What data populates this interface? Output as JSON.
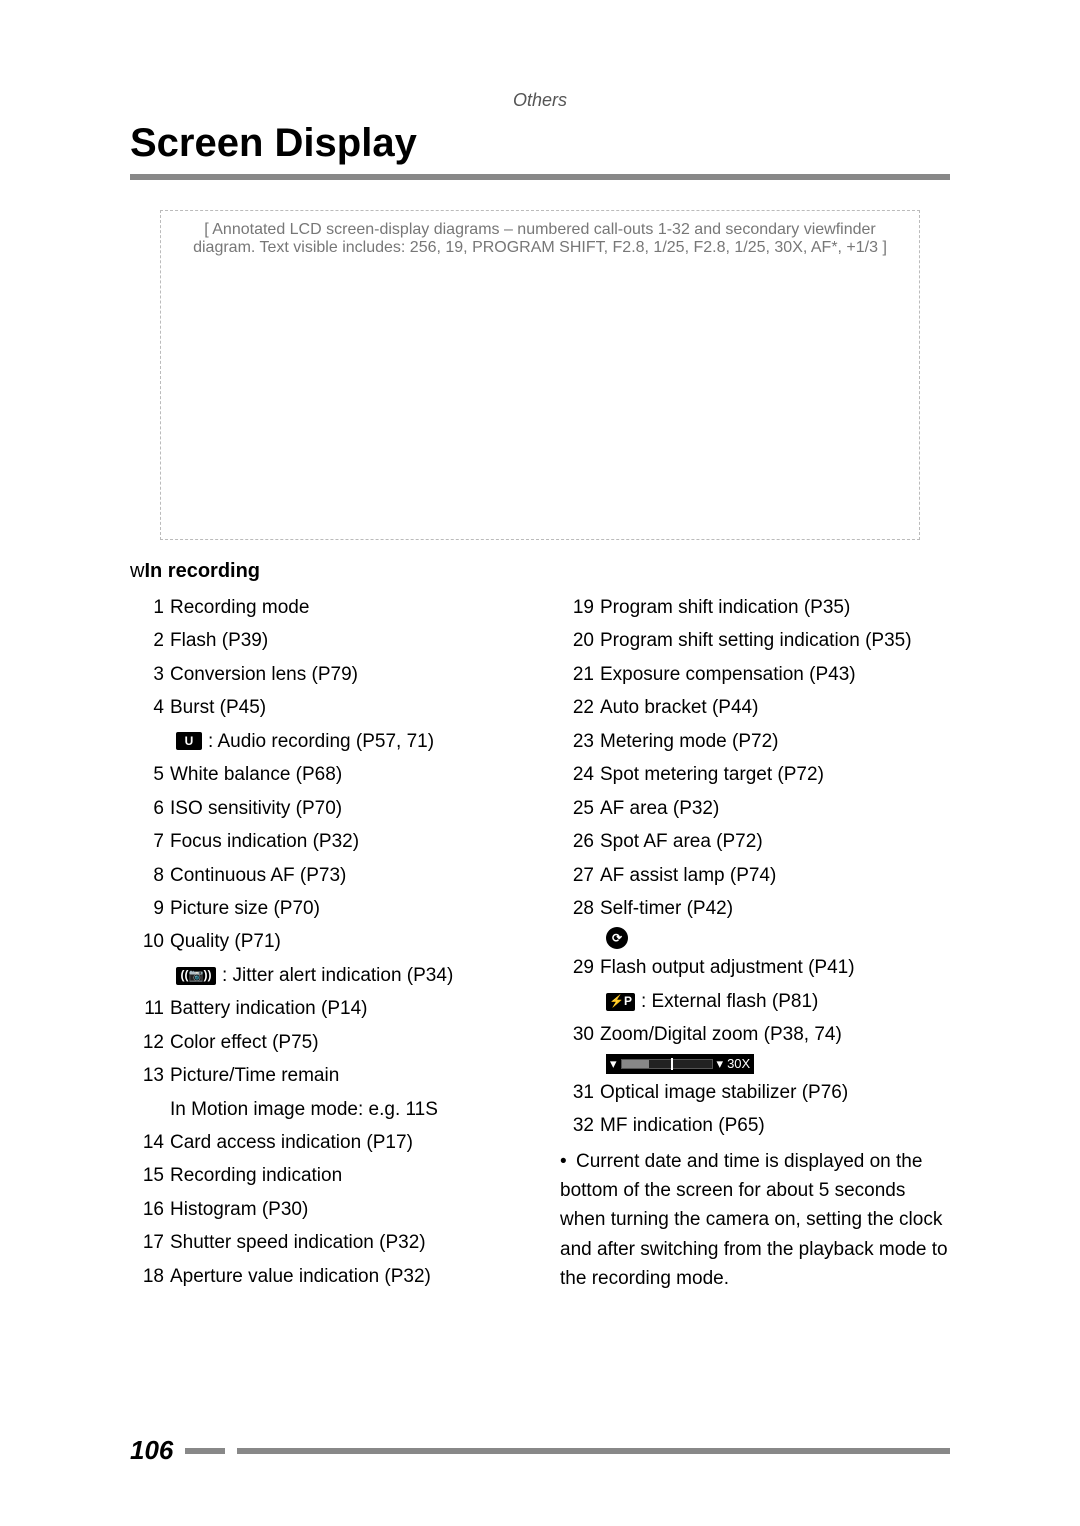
{
  "breadcrumb": "Others",
  "title": "Screen Display",
  "diagram_placeholder": "[ Annotated LCD screen-display diagrams – numbered call-outs 1-32 and secondary viewfinder diagram. Text visible includes: 256, 19, PROGRAM SHIFT, F2.8, 1/25, F2.8, 1/25, 30X, AF*, +1/3 ]",
  "section_heading_prefix": "w",
  "section_heading": "In recording",
  "left_items": [
    {
      "n": "1",
      "t": "Recording mode"
    },
    {
      "n": "2",
      "t": "Flash (P39)"
    },
    {
      "n": "3",
      "t": "Conversion lens (P79)"
    },
    {
      "n": "4",
      "t": "Burst (P45)"
    },
    {
      "n": "",
      "t": "",
      "sub": true,
      "icon": "audio",
      "sub_t": ": Audio recording (P57, 71)"
    },
    {
      "n": "5",
      "t": "White balance (P68)"
    },
    {
      "n": "6",
      "t": "ISO sensitivity (P70)"
    },
    {
      "n": "7",
      "t": "Focus indication (P32)"
    },
    {
      "n": "8",
      "t": "Continuous AF (P73)"
    },
    {
      "n": "9",
      "t": "Picture size (P70)"
    },
    {
      "n": "10",
      "t": "Quality (P71)"
    },
    {
      "n": "",
      "t": "",
      "sub": true,
      "icon": "jitter",
      "sub_t": ": Jitter alert indication (P34)"
    },
    {
      "n": "11",
      "t": "Battery indication (P14)"
    },
    {
      "n": "12",
      "t": "Color effect (P75)"
    },
    {
      "n": "13",
      "t": "Picture/Time remain"
    },
    {
      "n": "",
      "t": "In Motion image mode:  e.g. 11S",
      "cont": true
    },
    {
      "n": "14",
      "t": "Card access indication (P17)"
    },
    {
      "n": "15",
      "t": "Recording indication"
    },
    {
      "n": "16",
      "t": "Histogram (P30)"
    },
    {
      "n": "17",
      "t": "Shutter speed indication (P32)"
    },
    {
      "n": "18",
      "t": "Aperture value indication (P32)"
    }
  ],
  "right_items": [
    {
      "n": "19",
      "t": "Program shift indication (P35)"
    },
    {
      "n": "20",
      "t": "Program shift setting indication (P35)"
    },
    {
      "n": "21",
      "t": "Exposure compensation (P43)"
    },
    {
      "n": "22",
      "t": "Auto bracket (P44)"
    },
    {
      "n": "23",
      "t": "Metering mode (P72)"
    },
    {
      "n": "24",
      "t": "Spot metering target (P72)"
    },
    {
      "n": "25",
      "t": "AF area (P32)"
    },
    {
      "n": "26",
      "t": "Spot AF area (P72)"
    },
    {
      "n": "27",
      "t": "AF assist lamp (P74)"
    },
    {
      "n": "28",
      "t": "Self-timer (P42)"
    },
    {
      "n": "",
      "t": "",
      "sub": true,
      "icon": "timer",
      "sub_t": ""
    },
    {
      "n": "29",
      "t": "Flash output adjustment (P41)"
    },
    {
      "n": "",
      "t": "",
      "sub": true,
      "icon": "extflash",
      "sub_t": ": External flash (P81)"
    },
    {
      "n": "30",
      "t": "Zoom/Digital zoom (P38, 74)"
    },
    {
      "n": "",
      "t": "",
      "sub": true,
      "icon": "zoombar",
      "sub_t": ""
    },
    {
      "n": "31",
      "t": "Optical image stabilizer (P76)"
    },
    {
      "n": "32",
      "t": "MF indication (P65)"
    }
  ],
  "note_text": "Current date and time is displayed on the bottom of the screen for about 5 seconds when turning the camera on, setting the clock and after switching from the playback mode to the recording mode.",
  "zoom_label": "30X",
  "page_number": "106"
}
